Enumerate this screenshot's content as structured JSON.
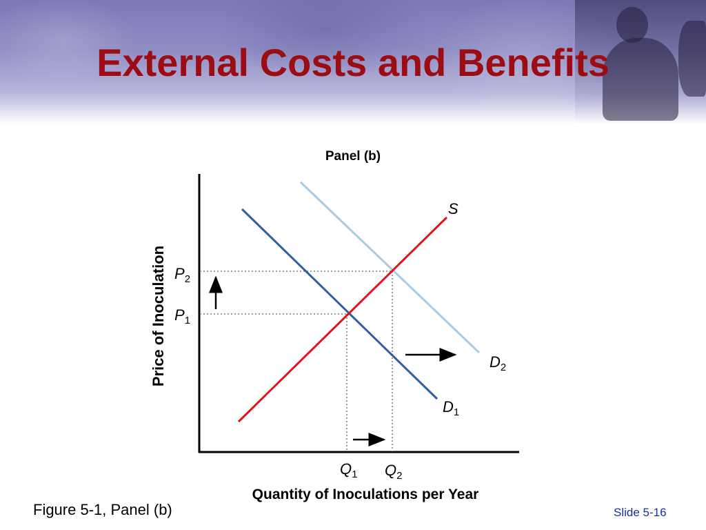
{
  "slide": {
    "title": "External Costs and Benefits",
    "caption": "Figure 5-1, Panel (b)",
    "slide_number": "Slide 5-16"
  },
  "chart_data": {
    "type": "line",
    "title": "Panel (b)",
    "xlabel": "Quantity of Inoculations per Year",
    "ylabel": "Price of Inoculation",
    "x_ticks": [
      {
        "main": "Q",
        "sub": "1"
      },
      {
        "main": "Q",
        "sub": "2"
      }
    ],
    "y_ticks": [
      {
        "main": "P",
        "sub": "2"
      },
      {
        "main": "P",
        "sub": "1"
      }
    ],
    "series": [
      {
        "name": "S",
        "sub": "",
        "color": "#e0151b"
      },
      {
        "name": "D",
        "sub": "1",
        "color": "#2e5fa0"
      },
      {
        "name": "D",
        "sub": "2",
        "color": "#a9cbe2"
      }
    ],
    "annotations": [
      "price-increase-arrow",
      "demand-shift-arrow",
      "quantity-increase-arrow"
    ],
    "grid": false,
    "axis_numbers": false
  }
}
